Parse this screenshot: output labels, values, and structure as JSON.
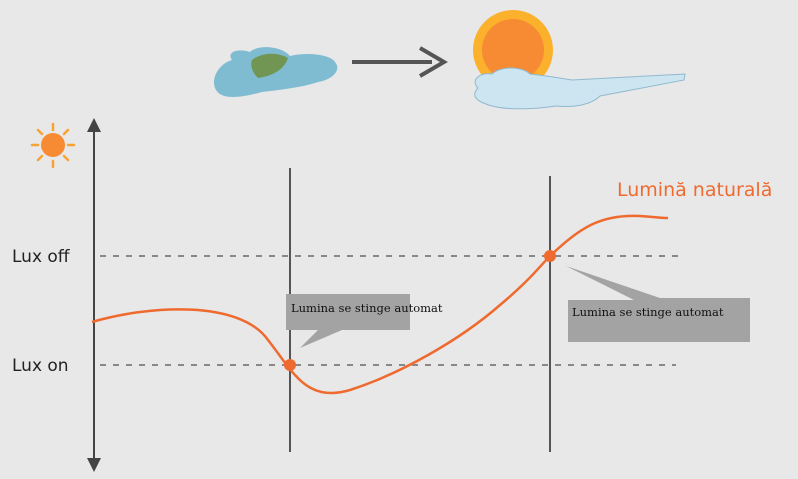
{
  "diagram": {
    "axis_levels": {
      "lux_off": "Lux off",
      "lux_on": "Lux on"
    },
    "series_label": "Lumină naturală",
    "callouts": [
      {
        "text": "Lumina se stinge automat"
      },
      {
        "text": "Lumina se stinge automat"
      }
    ],
    "colors": {
      "background": "#e8e8e8",
      "curve": "#ef6a2f",
      "sun": "#f68b33",
      "sun_ring": "#fbb12b",
      "moon": "#f7a823",
      "cloud_blue": "#7fbcd2",
      "cloud_light": "#cde5f0",
      "callout_fill": "#a3a3a3",
      "axis": "#444444",
      "guide": "#888888"
    },
    "icons": {
      "top_left": "cloud-with-moon-icon",
      "arrow": "right-arrow-icon",
      "top_right": "sun-behind-cloud-icon",
      "axis_top": "sun-icon",
      "axis_bottom": "crescent-moon-icon"
    }
  }
}
